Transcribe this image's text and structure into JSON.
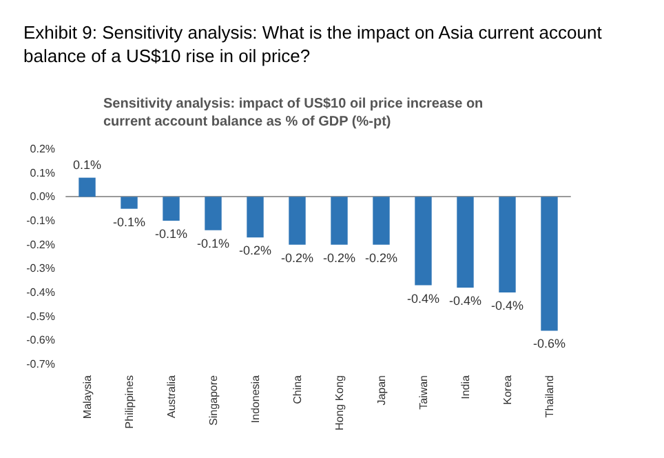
{
  "chart_data": {
    "type": "bar",
    "title": "Exhibit 9: Sensitivity analysis: What is the impact on Asia current account balance of a US$10 rise in oil price?",
    "subtitle": "Sensitivity analysis: impact of US$10 oil price increase on current account balance as % of GDP (%-pt)",
    "categories": [
      "Malaysia",
      "Philippines",
      "Australia",
      "Singapore",
      "Indonesia",
      "China",
      "Hong Kong",
      "Japan",
      "Taiwan",
      "India",
      "Korea",
      "Thailand"
    ],
    "values": [
      0.08,
      -0.05,
      -0.1,
      -0.14,
      -0.17,
      -0.2,
      -0.2,
      -0.2,
      -0.37,
      -0.38,
      -0.4,
      -0.56
    ],
    "value_labels": [
      "0.1%",
      "-0.1%",
      "-0.1%",
      "-0.1%",
      "-0.2%",
      "-0.2%",
      "-0.2%",
      "-0.2%",
      "-0.4%",
      "-0.4%",
      "-0.4%",
      "-0.6%"
    ],
    "color": "#2e75b6",
    "ylim": [
      -0.7,
      0.2
    ],
    "yticks": [
      {
        "value": -0.7,
        "label": "-0.7%"
      },
      {
        "value": -0.6,
        "label": "-0.6%"
      },
      {
        "value": -0.5,
        "label": "-0.5%"
      },
      {
        "value": -0.4,
        "label": "-0.4%"
      },
      {
        "value": -0.3,
        "label": "-0.3%"
      },
      {
        "value": -0.2,
        "label": "-0.2%"
      },
      {
        "value": -0.1,
        "label": "-0.1%"
      },
      {
        "value": 0,
        "label": "0.0%"
      },
      {
        "value": 0.1,
        "label": "0.1%"
      },
      {
        "value": 0.2,
        "label": "0.2%"
      }
    ]
  }
}
